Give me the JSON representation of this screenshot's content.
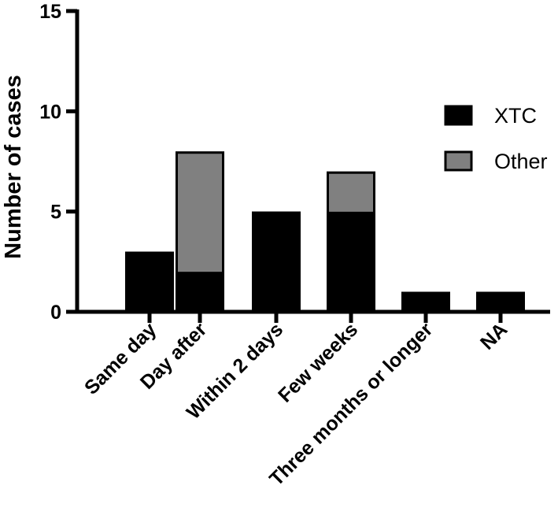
{
  "chart_data": {
    "type": "bar",
    "stacked": true,
    "categories": [
      "Same day",
      "Day after",
      "Within 2 days",
      "Few weeks",
      "Three months or longer",
      "NA"
    ],
    "series": [
      {
        "name": "XTC",
        "values": [
          3,
          2,
          5,
          5,
          1,
          1
        ],
        "color": "#000000"
      },
      {
        "name": "Other",
        "values": [
          0,
          6,
          0,
          2,
          0,
          0
        ],
        "color": "#808080"
      }
    ],
    "xlabel": "",
    "ylabel": "Number of cases",
    "ylim": [
      0,
      15
    ],
    "yticks": [
      0,
      5,
      10,
      15
    ],
    "grid": false,
    "legend_position": "right"
  }
}
